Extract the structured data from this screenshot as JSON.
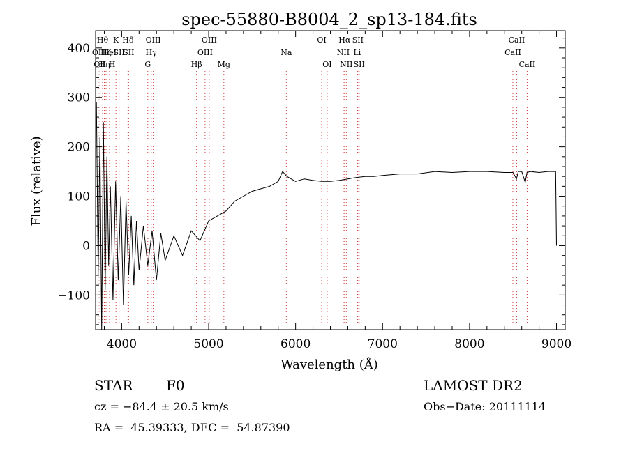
{
  "chart_data": {
    "type": "line",
    "title": "spec-55880-B8004_2_sp13-184.fits",
    "xlabel": "Wavelength (Å)",
    "ylabel": "Flux (relative)",
    "xlim": [
      3700,
      9100
    ],
    "ylim": [
      -170,
      435
    ],
    "xticks": [
      4000,
      5000,
      6000,
      7000,
      8000,
      9000
    ],
    "yticks": [
      -100,
      0,
      100,
      200,
      300,
      400
    ],
    "xtick_labels": [
      "4000",
      "5000",
      "6000",
      "7000",
      "8000",
      "9000"
    ],
    "ytick_labels": [
      "−100",
      "0",
      "100",
      "200",
      "300",
      "400"
    ],
    "grid": false,
    "series": [
      {
        "values_note": "",
        "x": [
          3710,
          3730,
          3750,
          3770,
          3790,
          3810,
          3830,
          3850,
          3870,
          3900,
          3930,
          3960,
          3990,
          4020,
          4050,
          4080,
          4110,
          4140,
          4170,
          4200,
          4250,
          4300,
          4350,
          4400,
          4450,
          4500,
          4600,
          4700,
          4800,
          4900,
          5000,
          5100,
          5200,
          5300,
          5400,
          5500,
          5600,
          5700,
          5800,
          5850,
          5900,
          6000,
          6100,
          6200,
          6300,
          6400,
          6500,
          6600,
          6700,
          6800,
          6900,
          7000,
          7200,
          7400,
          7600,
          7800,
          8000,
          8200,
          8400,
          8500,
          8540,
          8560,
          8600,
          8640,
          8660,
          8700,
          8800,
          8900,
          8990,
          9000
        ],
        "y": [
          290,
          -60,
          220,
          -170,
          250,
          -90,
          180,
          -40,
          120,
          -110,
          130,
          -70,
          100,
          -120,
          90,
          -60,
          60,
          -80,
          50,
          -50,
          40,
          -40,
          30,
          -70,
          25,
          -30,
          20,
          -20,
          30,
          10,
          50,
          60,
          70,
          90,
          100,
          110,
          115,
          120,
          130,
          150,
          140,
          130,
          135,
          132,
          130,
          130,
          132,
          135,
          138,
          140,
          140,
          142,
          145,
          145,
          150,
          148,
          150,
          150,
          148,
          148,
          135,
          150,
          150,
          128,
          148,
          150,
          148,
          150,
          150,
          0
        ]
      }
    ],
    "line_labels": [
      {
        "x": 3730,
        "row": 1,
        "text": "OII"
      },
      {
        "x": 3750,
        "row": 2,
        "text": "OII"
      },
      {
        "x": 3780,
        "row": 0,
        "text": "Hθ"
      },
      {
        "x": 3800,
        "row": 2,
        "text": "Hη"
      },
      {
        "x": 3820,
        "row": 1,
        "text": "Hζ"
      },
      {
        "x": 3860,
        "row": 1,
        "text": "HeI"
      },
      {
        "x": 3889,
        "row": 2,
        "text": "H"
      },
      {
        "x": 3934,
        "row": 0,
        "text": "K"
      },
      {
        "x": 3970,
        "row": 1,
        "text": "SII"
      },
      {
        "x": 4072,
        "row": 0,
        "text": "Hδ"
      },
      {
        "x": 4080,
        "row": 1,
        "text": "SII"
      },
      {
        "x": 4300,
        "row": 2,
        "text": "G"
      },
      {
        "x": 4340,
        "row": 1,
        "text": "Hγ"
      },
      {
        "x": 4363,
        "row": 0,
        "text": "OIII"
      },
      {
        "x": 4861,
        "row": 2,
        "text": "Hβ"
      },
      {
        "x": 4959,
        "row": 1,
        "text": "OIII"
      },
      {
        "x": 5007,
        "row": 0,
        "text": "OIII"
      },
      {
        "x": 5175,
        "row": 2,
        "text": "Mg"
      },
      {
        "x": 5893,
        "row": 1,
        "text": "Na"
      },
      {
        "x": 6300,
        "row": 0,
        "text": "OI"
      },
      {
        "x": 6363,
        "row": 2,
        "text": "OI"
      },
      {
        "x": 6548,
        "row": 1,
        "text": "NII"
      },
      {
        "x": 6563,
        "row": 0,
        "text": "Hα"
      },
      {
        "x": 6583,
        "row": 2,
        "text": "NII"
      },
      {
        "x": 6708,
        "row": 1,
        "text": "Li"
      },
      {
        "x": 6716,
        "row": 0,
        "text": "SII"
      },
      {
        "x": 6731,
        "row": 2,
        "text": "SII"
      },
      {
        "x": 8498,
        "row": 1,
        "text": "CaII"
      },
      {
        "x": 8542,
        "row": 0,
        "text": "CaII"
      },
      {
        "x": 8662,
        "row": 2,
        "text": "CaII"
      }
    ]
  },
  "info": {
    "class_label": "STAR",
    "subclass_label": "F0",
    "survey": "LAMOST DR2",
    "redshift_line": "cz = −84.4 ± 20.5 km/s",
    "obs_date_line": "Obs−Date: 20111114",
    "coords_line": "RA =  45.39333, DEC =  54.87390"
  }
}
